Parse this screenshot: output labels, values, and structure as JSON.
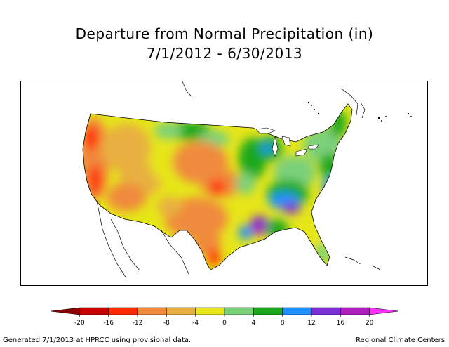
{
  "title": {
    "line1": "Departure from Normal Precipitation (in)",
    "line2": "7/1/2012 - 6/30/2013"
  },
  "legend": {
    "colors": [
      "#8b0000",
      "#c80000",
      "#ff2a00",
      "#f08a3c",
      "#e8b040",
      "#e6e619",
      "#7cd07a",
      "#1ca81c",
      "#1e90ff",
      "#7b2fd6",
      "#b01fc0",
      "#ff30ff"
    ],
    "ticks": [
      "-20",
      "-16",
      "-12",
      "-8",
      "-4",
      "0",
      "4",
      "8",
      "12",
      "16",
      "20"
    ]
  },
  "footer": {
    "left": "Generated 7/1/2013 at HPRCC using provisional data.",
    "right": "Regional Climate Centers"
  }
}
